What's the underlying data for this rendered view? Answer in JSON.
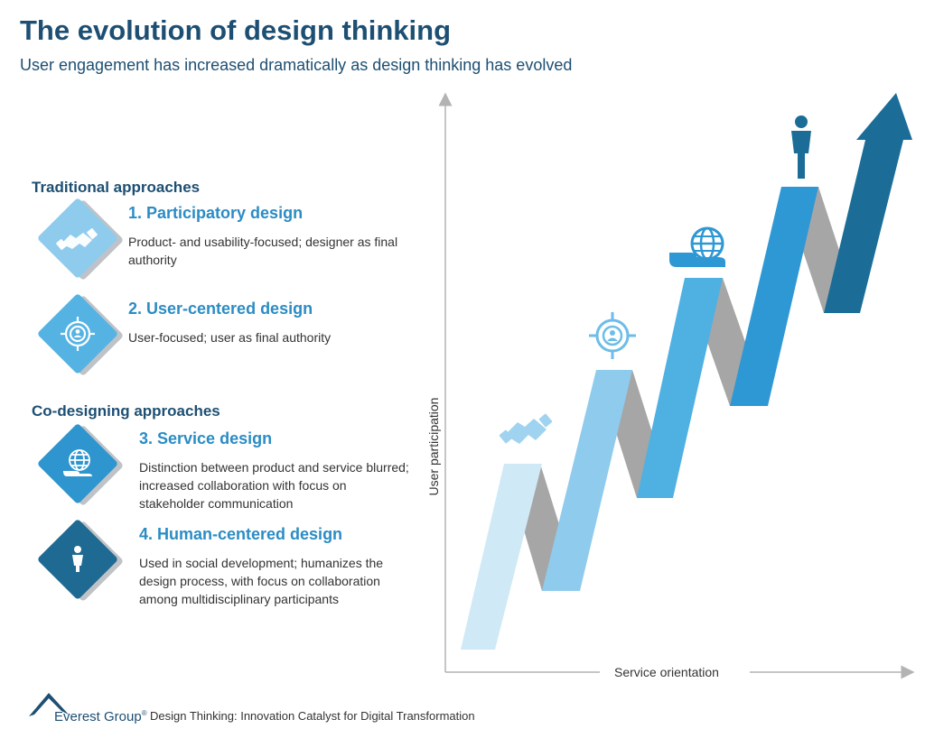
{
  "header": {
    "title": "The evolution of design thinking",
    "subtitle": "User engagement has increased dramatically as design thinking has evolved"
  },
  "sections": [
    {
      "heading": "Traditional approaches",
      "items": [
        {
          "title": "1. Participatory design",
          "description": "Product- and usability-focused; designer as final authority",
          "icon": "handshake-icon",
          "color": "#8fcbed"
        },
        {
          "title": "2. User-centered design",
          "description": "User-focused; user as final authority",
          "icon": "target-user-icon",
          "color": "#55b3e3"
        }
      ]
    },
    {
      "heading": "Co-designing approaches",
      "items": [
        {
          "title": "3. Service design",
          "description": "Distinction between product and service blurred; increased collaboration with focus on stakeholder communication",
          "icon": "globe-hand-icon",
          "color": "#2f95cf"
        },
        {
          "title": "4. Human-centered design",
          "description": "Used in social development; humanizes the design process, with focus on collaboration among multidisciplinary participants",
          "icon": "person-icon",
          "color": "#1e6a92"
        }
      ]
    }
  ],
  "diagram": {
    "y_axis_label": "User participation",
    "x_axis_label": "Service orientation",
    "colors": {
      "step1": "#cfe9f7",
      "step2": "#8fcbed",
      "step3": "#4fb0e2",
      "step4": "#2e98d4",
      "arrow": "#1b6d98",
      "fold": "#a6a6a6",
      "axis": "#b3b3b3"
    }
  },
  "footer": {
    "brand": "Everest Group",
    "caption": "Design Thinking: Innovation Catalyst for Digital Transformation"
  }
}
